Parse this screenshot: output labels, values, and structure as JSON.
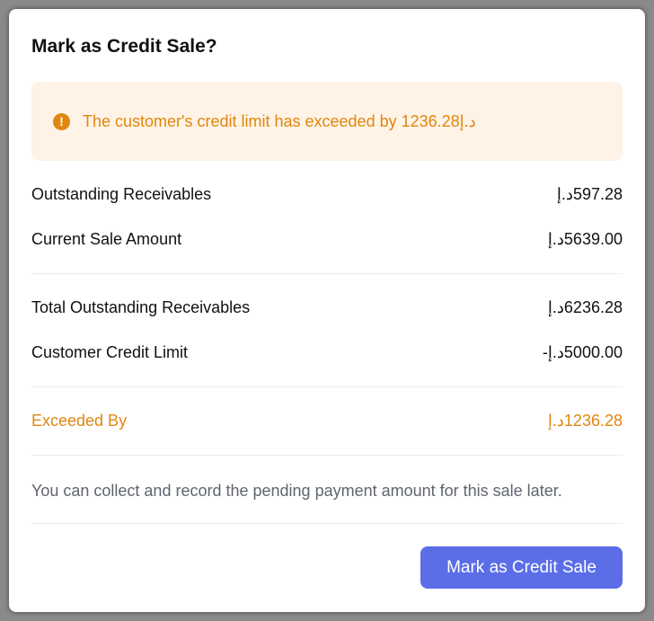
{
  "dialog": {
    "title": "Mark as Credit Sale?",
    "warning": {
      "icon": "exclamation-circle-icon",
      "text": "The customer's credit limit has exceeded by 1236.28د.إ"
    },
    "rows": [
      {
        "label": "Outstanding Receivables",
        "value": "597.28د.إ"
      },
      {
        "label": "Current Sale Amount",
        "value": "5639.00د.إ"
      },
      {
        "label": "Total Outstanding Receivables",
        "value": "6236.28د.إ"
      },
      {
        "label": "Customer Credit Limit",
        "value": "5000.00د.إ-"
      },
      {
        "label": "Exceeded By",
        "value": "1236.28د.إ"
      }
    ],
    "note": "You can collect and record the pending payment amount for this sale later.",
    "confirm_label": "Mark as Credit Sale"
  },
  "colors": {
    "accent": "#5b6ee8",
    "warning": "#e0860f",
    "warning_bg": "#fef3e6"
  }
}
